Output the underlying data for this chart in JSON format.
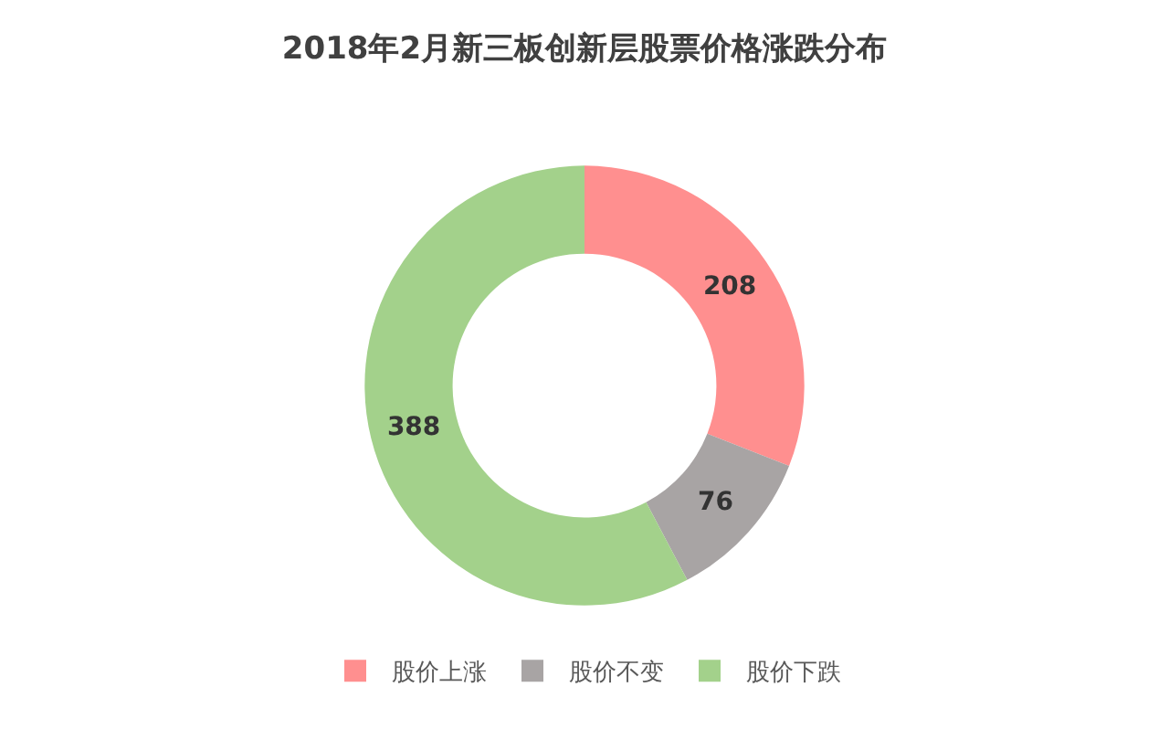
{
  "chart_data": {
    "type": "donut",
    "title": "2018年2月新三板创新层股票价格涨跌分布",
    "categories": [
      "股价上涨",
      "股价不变",
      "股价下跌"
    ],
    "values": [
      208,
      76,
      388
    ],
    "colors": [
      "#ff8f8f",
      "#a8a4a4",
      "#a3d18b"
    ],
    "data_labels": true,
    "legend": "bottom"
  }
}
